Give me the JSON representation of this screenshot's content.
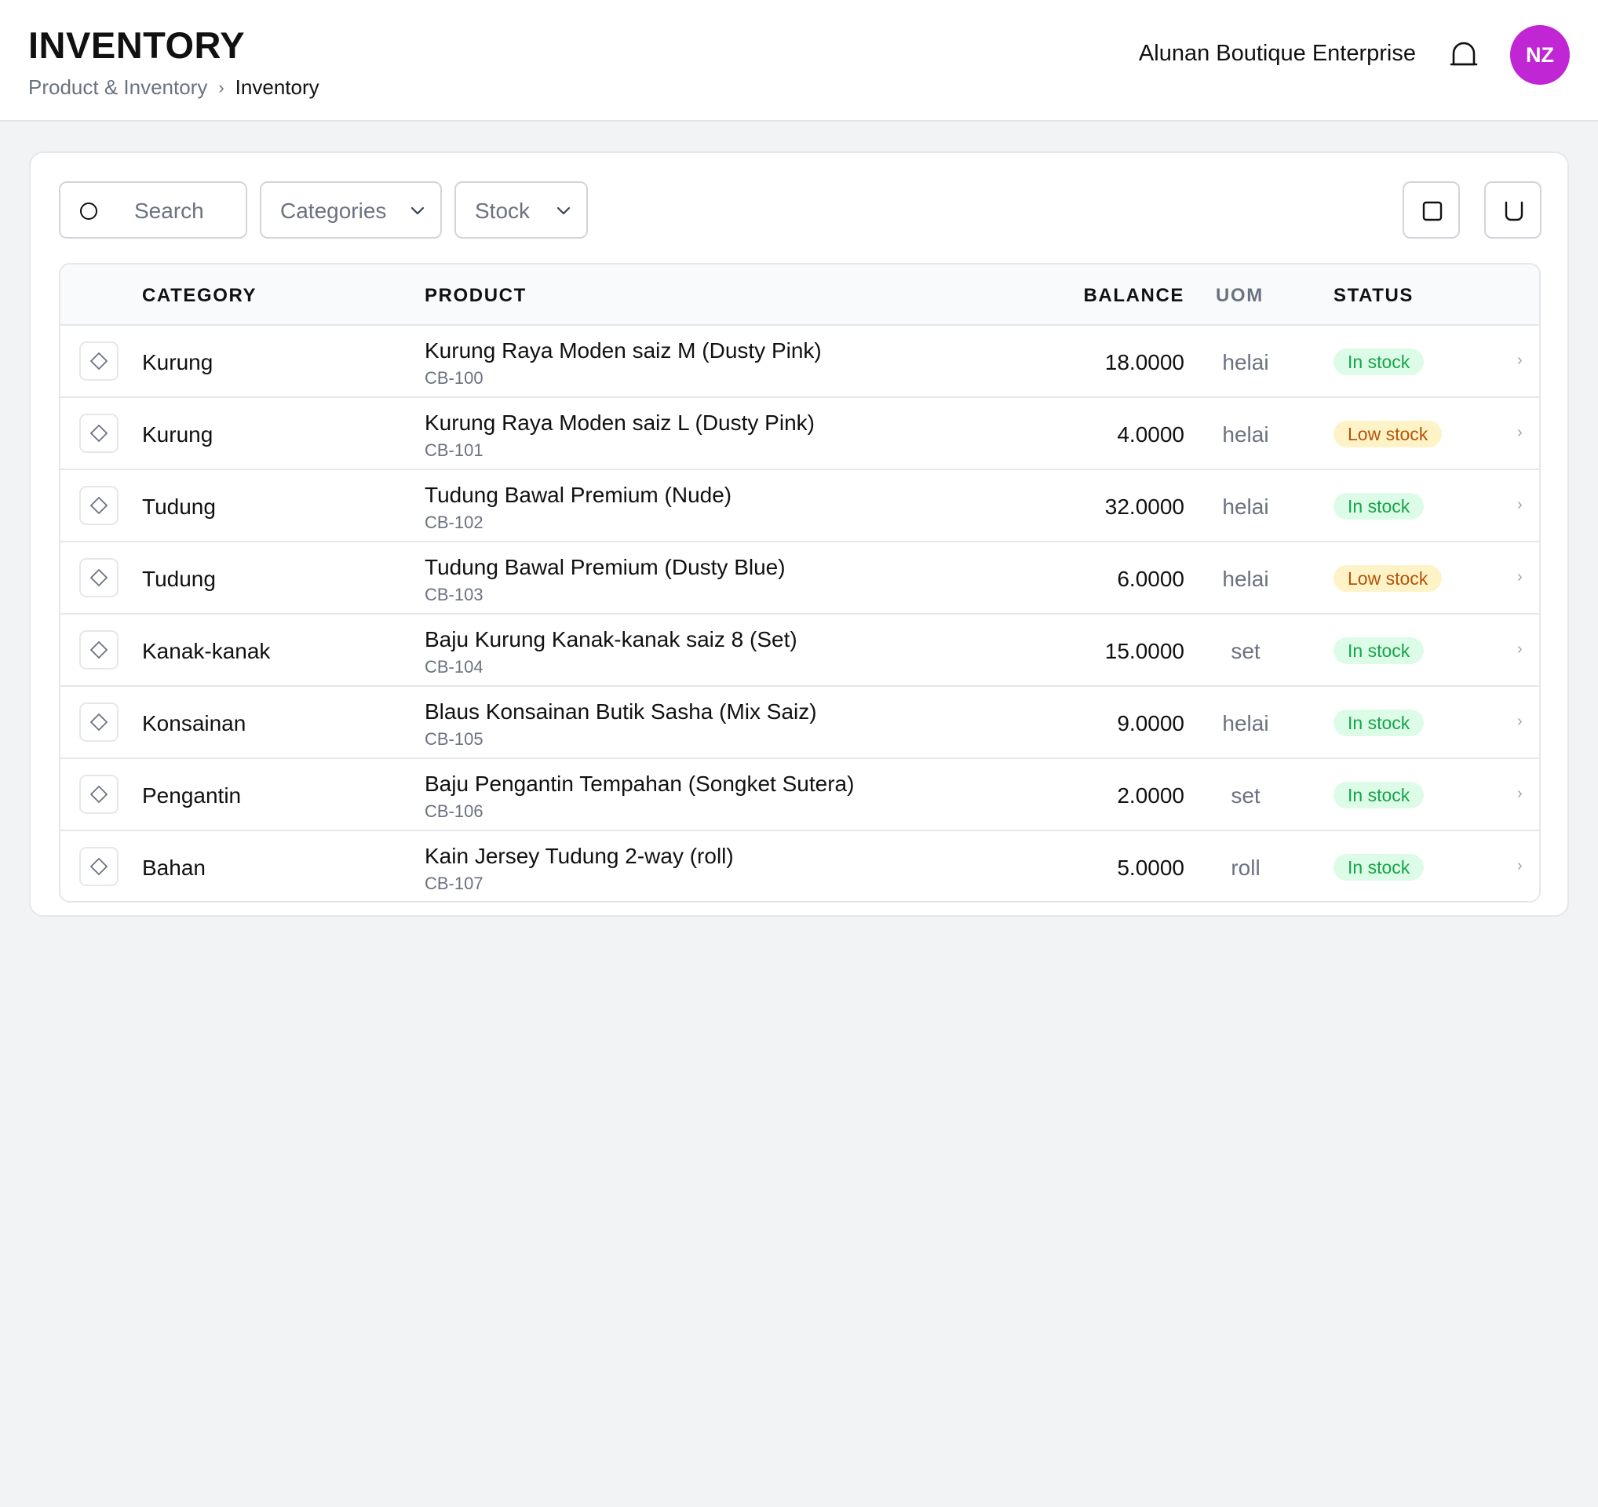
{
  "header": {
    "title": "INVENTORY",
    "breadcrumb": [
      "Product & Inventory",
      "Inventory"
    ],
    "breadcrumb_separator": "›",
    "company": "Alunan Boutique Enterprise",
    "avatar_initials": "NZ",
    "avatar_color": "#c026d3"
  },
  "toolbar": {
    "search_placeholder": "Search",
    "categories_label": "Categories",
    "stock_label": "Stock"
  },
  "table": {
    "columns": {
      "category": "CATEGORY",
      "product": "PRODUCT",
      "balance": "BALANCE",
      "uom": "UOM",
      "status": "STATUS"
    },
    "rows": [
      {
        "category": "Kurung",
        "name": "Kurung Raya Moden saiz M (Dusty Pink)",
        "code": "CB-100",
        "balance": "18.0000",
        "uom": "helai",
        "status": "In stock",
        "status_type": "in"
      },
      {
        "category": "Kurung",
        "name": "Kurung Raya Moden saiz L (Dusty Pink)",
        "code": "CB-101",
        "balance": "4.0000",
        "uom": "helai",
        "status": "Low stock",
        "status_type": "low"
      },
      {
        "category": "Tudung",
        "name": "Tudung Bawal Premium (Nude)",
        "code": "CB-102",
        "balance": "32.0000",
        "uom": "helai",
        "status": "In stock",
        "status_type": "in"
      },
      {
        "category": "Tudung",
        "name": "Tudung Bawal Premium (Dusty Blue)",
        "code": "CB-103",
        "balance": "6.0000",
        "uom": "helai",
        "status": "Low stock",
        "status_type": "low"
      },
      {
        "category": "Kanak-kanak",
        "name": "Baju Kurung Kanak-kanak saiz 8 (Set)",
        "code": "CB-104",
        "balance": "15.0000",
        "uom": "set",
        "status": "In stock",
        "status_type": "in"
      },
      {
        "category": "Konsainan",
        "name": "Blaus Konsainan Butik Sasha (Mix Saiz)",
        "code": "CB-105",
        "balance": "9.0000",
        "uom": "helai",
        "status": "In stock",
        "status_type": "in"
      },
      {
        "category": "Pengantin",
        "name": "Baju Pengantin Tempahan (Songket Sutera)",
        "code": "CB-106",
        "balance": "2.0000",
        "uom": "set",
        "status": "In stock",
        "status_type": "in"
      },
      {
        "category": "Bahan",
        "name": "Kain Jersey Tudung 2-way (roll)",
        "code": "CB-107",
        "balance": "5.0000",
        "uom": "roll",
        "status": "In stock",
        "status_type": "in"
      }
    ],
    "row_chevron": "›"
  },
  "colors": {
    "in_stock_bg": "#dcfce7",
    "in_stock_text": "#16a34a",
    "low_stock_bg": "#fef3c7",
    "low_stock_text": "#b45309"
  },
  "icons": {
    "search": "search-icon",
    "dropdown": "chevron-down-icon",
    "bell": "bell-icon",
    "action_a": "square-icon",
    "action_b": "bag-icon",
    "row": "diamond-icon",
    "row_chevron": "chevron-right-icon"
  }
}
